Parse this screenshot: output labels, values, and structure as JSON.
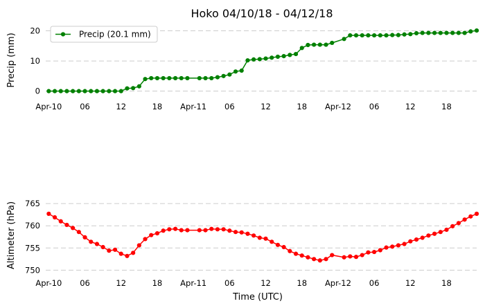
{
  "chart_data": [
    {
      "type": "line",
      "title": "Hoko 04/10/18 - 04/12/18",
      "ylabel": "Precip (mm)",
      "xlabel": "",
      "ylim": [
        -1,
        21.5
      ],
      "yticks": [
        0,
        10,
        20
      ],
      "grid": true,
      "legend": "top-left",
      "x_range_hours": [
        -0.5,
        71
      ],
      "xticks": [
        {
          "hour": 0,
          "label": "Apr-10"
        },
        {
          "hour": 6,
          "label": "06"
        },
        {
          "hour": 12,
          "label": "12"
        },
        {
          "hour": 18,
          "label": "18"
        },
        {
          "hour": 24,
          "label": "Apr-11"
        },
        {
          "hour": 30,
          "label": "06"
        },
        {
          "hour": 36,
          "label": "12"
        },
        {
          "hour": 42,
          "label": "18"
        },
        {
          "hour": 48,
          "label": "Apr-12"
        },
        {
          "hour": 54,
          "label": "06"
        },
        {
          "hour": 60,
          "label": "12"
        },
        {
          "hour": 66,
          "label": "18"
        }
      ],
      "series": [
        {
          "name": "Precip (20.1 mm)",
          "color": "#008000",
          "x_hours": [
            0,
            1,
            2,
            3,
            4,
            5,
            6,
            7,
            8,
            9,
            10,
            11,
            12,
            13,
            14,
            15,
            16,
            17,
            18,
            19,
            20,
            21,
            22,
            23,
            25,
            26,
            27,
            28,
            29,
            30,
            31,
            32,
            33,
            34,
            35,
            36,
            37,
            38,
            39,
            40,
            41,
            42,
            43,
            44,
            45,
            46,
            47,
            49,
            50,
            51,
            52,
            53,
            54,
            55,
            56,
            57,
            58,
            59,
            60,
            61,
            62,
            63,
            64,
            65,
            66,
            67,
            68,
            69,
            70,
            71
          ],
          "values": [
            0,
            0,
            0,
            0,
            0,
            0,
            0,
            0,
            0,
            0,
            0,
            0,
            0,
            0.9,
            1.0,
            1.6,
            4.0,
            4.3,
            4.3,
            4.3,
            4.3,
            4.3,
            4.3,
            4.3,
            4.3,
            4.3,
            4.3,
            4.6,
            5.0,
            5.5,
            6.5,
            6.8,
            10.2,
            10.5,
            10.6,
            10.8,
            11.1,
            11.4,
            11.6,
            12.0,
            12.3,
            14.3,
            15.3,
            15.4,
            15.4,
            15.4,
            16.0,
            17.3,
            18.5,
            18.5,
            18.5,
            18.5,
            18.5,
            18.5,
            18.5,
            18.6,
            18.6,
            18.8,
            18.9,
            19.2,
            19.3,
            19.3,
            19.3,
            19.3,
            19.3,
            19.3,
            19.3,
            19.3,
            19.8,
            20.1
          ]
        }
      ]
    },
    {
      "type": "line",
      "title": "",
      "ylabel": "Altimeter (hPa)",
      "xlabel": "Time (UTC)",
      "ylim": [
        748.5,
        767.2
      ],
      "yticks": [
        750,
        755,
        760,
        765
      ],
      "grid": true,
      "x_range_hours": [
        -0.5,
        71
      ],
      "xticks": [
        {
          "hour": 0,
          "label": "Apr-10"
        },
        {
          "hour": 6,
          "label": "06"
        },
        {
          "hour": 12,
          "label": "12"
        },
        {
          "hour": 18,
          "label": "18"
        },
        {
          "hour": 24,
          "label": "Apr-11"
        },
        {
          "hour": 30,
          "label": "06"
        },
        {
          "hour": 36,
          "label": "12"
        },
        {
          "hour": 42,
          "label": "18"
        },
        {
          "hour": 48,
          "label": "Apr-12"
        },
        {
          "hour": 54,
          "label": "06"
        },
        {
          "hour": 60,
          "label": "12"
        },
        {
          "hour": 66,
          "label": "18"
        }
      ],
      "series": [
        {
          "color": "#ff0000",
          "x_hours": [
            0,
            1,
            2,
            3,
            4,
            5,
            6,
            7,
            8,
            9,
            10,
            11,
            12,
            13,
            14,
            15,
            16,
            17,
            18,
            19,
            20,
            21,
            22,
            23,
            25,
            26,
            27,
            28,
            29,
            30,
            31,
            32,
            33,
            34,
            35,
            36,
            37,
            38,
            39,
            40,
            41,
            42,
            43,
            44,
            45,
            46,
            47,
            49,
            50,
            51,
            52,
            53,
            54,
            55,
            56,
            57,
            58,
            59,
            60,
            61,
            62,
            63,
            64,
            65,
            66,
            67,
            68,
            69,
            70,
            71
          ],
          "values": [
            762.7,
            761.9,
            761.0,
            760.2,
            759.5,
            758.6,
            757.4,
            756.4,
            755.9,
            755.2,
            754.4,
            754.6,
            753.7,
            753.2,
            753.9,
            755.6,
            757.0,
            757.9,
            758.3,
            758.9,
            759.2,
            759.3,
            759.0,
            759.0,
            759.0,
            759.0,
            759.3,
            759.2,
            759.2,
            758.9,
            758.6,
            758.5,
            758.2,
            757.8,
            757.3,
            757.1,
            756.4,
            755.7,
            755.2,
            754.3,
            753.7,
            753.3,
            752.9,
            752.5,
            752.2,
            752.5,
            753.4,
            752.9,
            753.1,
            753.0,
            753.4,
            754.0,
            754.1,
            754.5,
            755.1,
            755.3,
            755.6,
            755.9,
            756.5,
            756.9,
            757.3,
            757.8,
            758.2,
            758.6,
            759.1,
            759.9,
            760.6,
            761.4,
            762.1,
            762.7
          ]
        }
      ]
    }
  ]
}
